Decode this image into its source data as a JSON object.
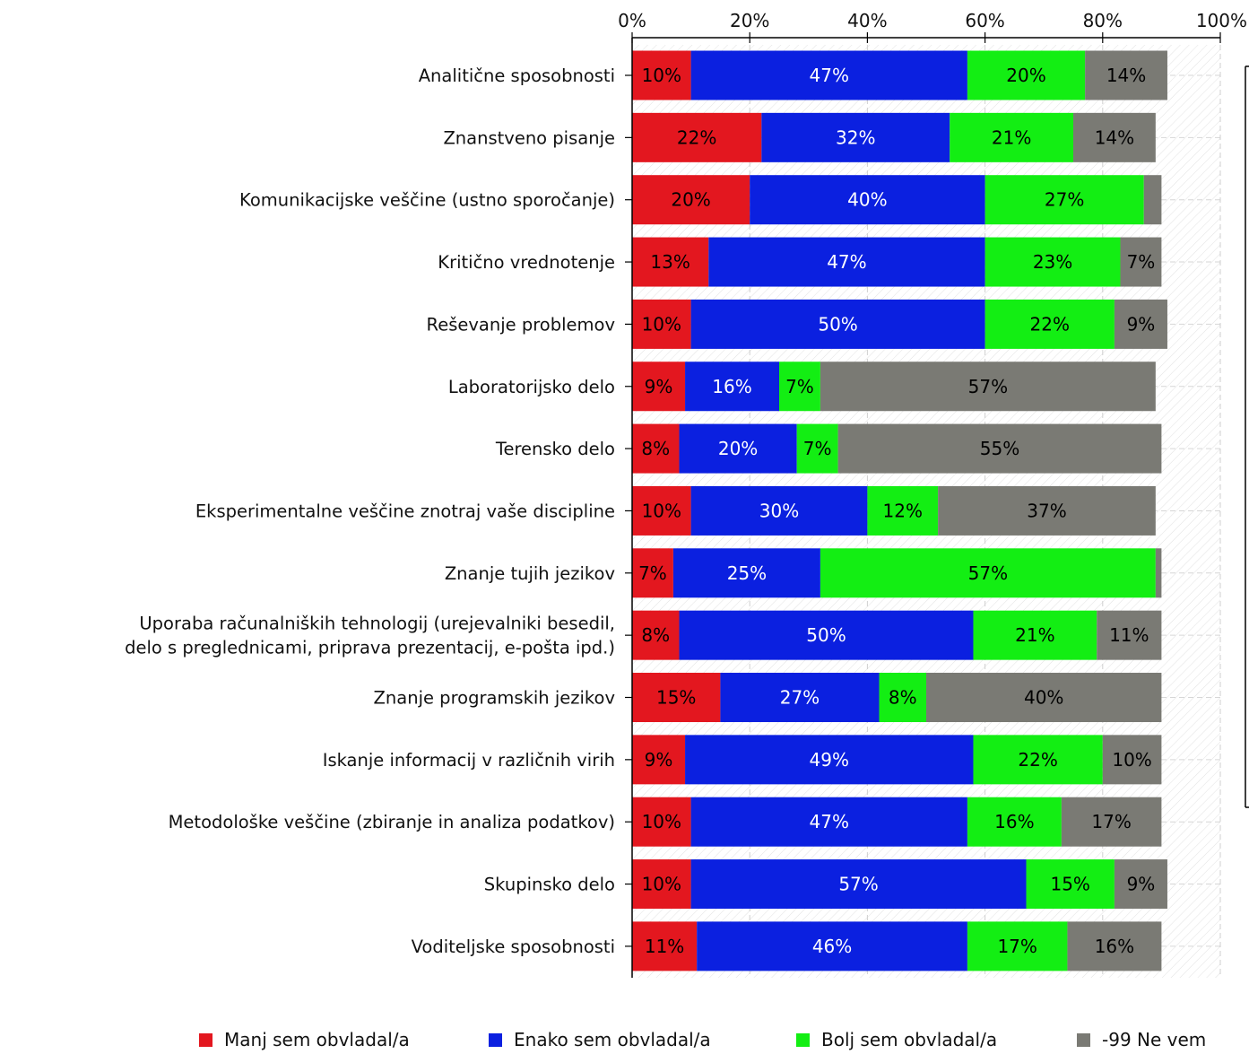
{
  "chart_data": {
    "type": "bar",
    "orientation": "horizontal",
    "stacked": true,
    "x_ticks": [
      "0%",
      "20%",
      "40%",
      "60%",
      "80%",
      "100%"
    ],
    "xlim": [
      0,
      100
    ],
    "grid": true,
    "legend_position": "bottom",
    "categories": [
      [
        "Analitične sposobnosti"
      ],
      [
        "Znanstveno pisanje"
      ],
      [
        "Komunikacijske veščine (ustno sporočanje)"
      ],
      [
        "Kritično vrednotenje"
      ],
      [
        "Reševanje problemov"
      ],
      [
        "Laboratorijsko delo"
      ],
      [
        "Terensko delo"
      ],
      [
        "Eksperimentalne veščine znotraj vaše discipline"
      ],
      [
        "Znanje tujih jezikov"
      ],
      [
        "Uporaba računalniških tehnologij (urejevalniki besedil,",
        "delo s preglednicami, priprava prezentacij, e-pošta ipd.)"
      ],
      [
        "Znanje programskih jezikov"
      ],
      [
        "Iskanje informacij v različnih virih"
      ],
      [
        "Metodološke veščine (zbiranje in analiza podatkov)"
      ],
      [
        "Skupinsko delo"
      ],
      [
        "Voditeljske sposobnosti"
      ]
    ],
    "series": [
      {
        "name": "Manj sem obvladal/a",
        "color": "#e3171f",
        "label_color": "#000000",
        "values": [
          10,
          22,
          20,
          13,
          10,
          9,
          8,
          10,
          7,
          8,
          15,
          9,
          10,
          10,
          11
        ],
        "labels": [
          "10%",
          "22%",
          "20%",
          "13%",
          "10%",
          "9%",
          "8%",
          "10%",
          "7%",
          "8%",
          "15%",
          "9%",
          "10%",
          "10%",
          "11%"
        ]
      },
      {
        "name": "Enako sem obvladal/a",
        "color": "#0b20e0",
        "label_color": "#ffffff",
        "values": [
          47,
          32,
          40,
          47,
          50,
          16,
          20,
          30,
          25,
          50,
          27,
          49,
          47,
          57,
          46
        ],
        "labels": [
          "47%",
          "32%",
          "40%",
          "47%",
          "50%",
          "16%",
          "20%",
          "30%",
          "25%",
          "50%",
          "27%",
          "49%",
          "47%",
          "57%",
          "46%"
        ]
      },
      {
        "name": "Bolj sem obvladal/a",
        "color": "#13ee13",
        "label_color": "#000000",
        "values": [
          20,
          21,
          27,
          23,
          22,
          7,
          7,
          12,
          57,
          21,
          8,
          22,
          16,
          15,
          17
        ],
        "labels": [
          "20%",
          "21%",
          "27%",
          "23%",
          "22%",
          "7%",
          "7%",
          "12%",
          "57%",
          "21%",
          "8%",
          "22%",
          "16%",
          "15%",
          "17%"
        ]
      },
      {
        "name": "-99 Ne vem",
        "color": "#7a7a74",
        "label_color": "#000000",
        "values": [
          14,
          14,
          3,
          7,
          9,
          57,
          55,
          37,
          1,
          11,
          40,
          10,
          17,
          9,
          16
        ],
        "labels": [
          "14%",
          "14%",
          "",
          "7%",
          "9%",
          "57%",
          "55%",
          "37%",
          "",
          "11%",
          "40%",
          "10%",
          "17%",
          "9%",
          "16%"
        ]
      }
    ]
  }
}
